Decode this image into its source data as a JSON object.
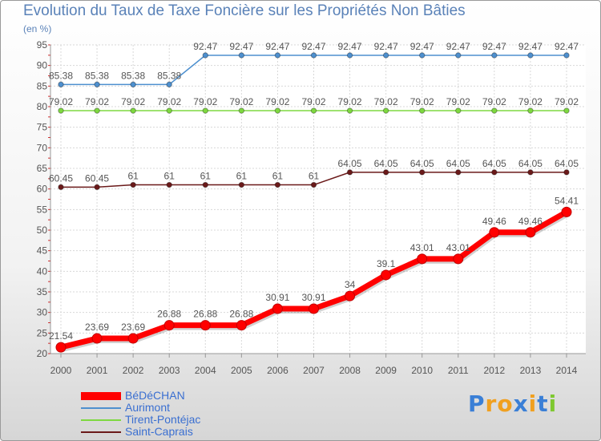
{
  "chart_data": {
    "type": "line",
    "title": "Evolution du Taux de Taxe Foncière sur les Propriétés Non Bâties",
    "ylabel": "(en %)",
    "xlabel": "",
    "ylim": [
      20,
      95
    ],
    "yticks": [
      20,
      25,
      30,
      35,
      40,
      45,
      50,
      55,
      60,
      65,
      70,
      75,
      80,
      85,
      90,
      95
    ],
    "grid": true,
    "legend_position": "bottom-left",
    "categories": [
      "2000",
      "2001",
      "2002",
      "2003",
      "2004",
      "2005",
      "2006",
      "2007",
      "2008",
      "2009",
      "2010",
      "2011",
      "2012",
      "2013",
      "2014"
    ],
    "series": [
      {
        "name": "BéDéCHAN",
        "color": "#ff0000",
        "values": [
          21.54,
          23.69,
          23.69,
          26.88,
          26.88,
          26.88,
          30.91,
          30.91,
          34,
          39.1,
          43.01,
          43.01,
          49.46,
          49.46,
          54.41
        ],
        "labels": [
          "21.54",
          "23.69",
          "23.69",
          "26.88",
          "26.88",
          "26.88",
          "30.91",
          "30.91",
          "34",
          "39.1",
          "43.01",
          "43.01",
          "49.46",
          "49.46",
          "54.41"
        ]
      },
      {
        "name": "Aurimont",
        "color": "#4e90cf",
        "values": [
          85.38,
          85.38,
          85.38,
          85.38,
          92.47,
          92.47,
          92.47,
          92.47,
          92.47,
          92.47,
          92.47,
          92.47,
          92.47,
          92.47,
          92.47
        ],
        "labels": [
          "85.38",
          "85.38",
          "85.38",
          "85.38",
          "92.47",
          "92.47",
          "92.47",
          "92.47",
          "92.47",
          "92.47",
          "92.47",
          "92.47",
          "92.47",
          "92.47",
          "92.47"
        ]
      },
      {
        "name": "Tirent-Pontéjac",
        "color": "#7ed840",
        "values": [
          79.02,
          79.02,
          79.02,
          79.02,
          79.02,
          79.02,
          79.02,
          79.02,
          79.02,
          79.02,
          79.02,
          79.02,
          79.02,
          79.02,
          79.02
        ],
        "labels": [
          "79.02",
          "79.02",
          "79.02",
          "79.02",
          "79.02",
          "79.02",
          "79.02",
          "79.02",
          "79.02",
          "79.02",
          "79.02",
          "79.02",
          "79.02",
          "79.02",
          "79.02"
        ]
      },
      {
        "name": "Saint-Caprais",
        "color": "#6b1a1a",
        "values": [
          60.45,
          60.45,
          61,
          61,
          61,
          61,
          61,
          61,
          64.05,
          64.05,
          64.05,
          64.05,
          64.05,
          64.05,
          64.05
        ],
        "labels": [
          "60.45",
          "60.45",
          "61",
          "61",
          "61",
          "61",
          "61",
          "61",
          "64.05",
          "64.05",
          "64.05",
          "64.05",
          "64.05",
          "64.05",
          "64.05"
        ]
      }
    ]
  },
  "logo": {
    "letters": [
      "P",
      "r",
      "o",
      "x",
      "i",
      "t",
      "i"
    ],
    "colors": [
      "#3a7fd6",
      "#f0a020",
      "#f0a020",
      "#3a7fd6",
      "#f0a020",
      "#3a7fd6",
      "#7ec830"
    ]
  }
}
